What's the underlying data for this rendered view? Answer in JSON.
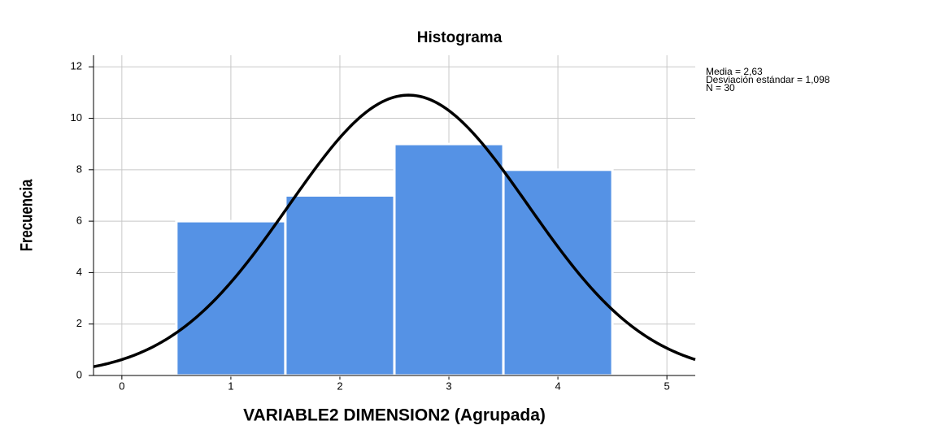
{
  "chart_data": {
    "type": "histogram",
    "title": "Histograma",
    "xlabel": "VARIABLE2 DIMENSION2 (Agrupada)",
    "ylabel": "Frecuencia",
    "bins": [
      0.5,
      1.5,
      2.5,
      3.5,
      4.5
    ],
    "values": [
      6,
      7,
      9,
      8
    ],
    "color": "#5592e5",
    "xlim": [
      -0.26,
      5.26
    ],
    "xticks": [
      0,
      1,
      2,
      3,
      4,
      5
    ],
    "ylim": [
      0,
      12.45
    ],
    "yticks": [
      0,
      2,
      4,
      6,
      8,
      10,
      12
    ],
    "grid": true,
    "annotations": [
      "Media = 2,63",
      "Desviación estándar = 1,098",
      "N = 30"
    ],
    "normal_curve": {
      "mean": 2.63,
      "sd": 1.098,
      "n": 30
    }
  }
}
